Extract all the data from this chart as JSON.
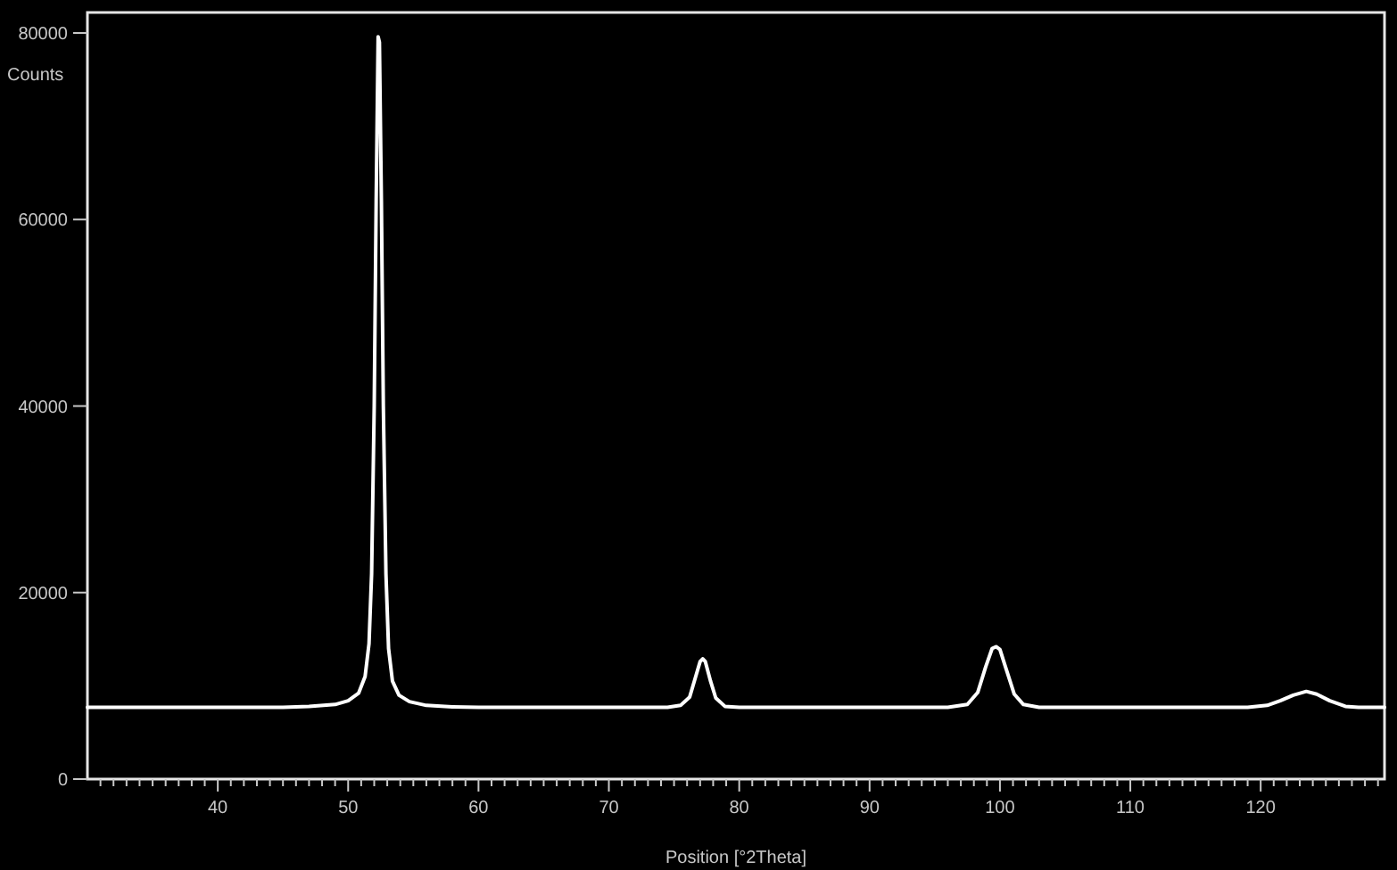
{
  "chart_data": {
    "type": "line",
    "xlabel": "Position [°2Theta]",
    "ylabel": "Counts",
    "xlim": [
      30,
      129.5
    ],
    "ylim": [
      0,
      82200
    ],
    "xticks": [
      {
        "value": 31,
        "label": null
      },
      {
        "value": 32,
        "label": null
      },
      {
        "value": 33,
        "label": null
      },
      {
        "value": 34,
        "label": null
      },
      {
        "value": 35,
        "label": null
      },
      {
        "value": 36,
        "label": null
      },
      {
        "value": 37,
        "label": null
      },
      {
        "value": 38,
        "label": null
      },
      {
        "value": 39,
        "label": null
      },
      40,
      {
        "value": 41,
        "label": null
      },
      {
        "value": 42,
        "label": null
      },
      {
        "value": 43,
        "label": null
      },
      {
        "value": 44,
        "label": null
      },
      {
        "value": 45,
        "label": null
      },
      {
        "value": 46,
        "label": null
      },
      {
        "value": 47,
        "label": null
      },
      {
        "value": 48,
        "label": null
      },
      {
        "value": 49,
        "label": null
      },
      50,
      {
        "value": 51,
        "label": null
      },
      {
        "value": 52,
        "label": null
      },
      {
        "value": 53,
        "label": null
      },
      {
        "value": 54,
        "label": null
      },
      {
        "value": 55,
        "label": null
      },
      {
        "value": 56,
        "label": null
      },
      {
        "value": 57,
        "label": null
      },
      {
        "value": 58,
        "label": null
      },
      {
        "value": 59,
        "label": null
      },
      60,
      {
        "value": 61,
        "label": null
      },
      {
        "value": 62,
        "label": null
      },
      {
        "value": 63,
        "label": null
      },
      {
        "value": 64,
        "label": null
      },
      {
        "value": 65,
        "label": null
      },
      {
        "value": 66,
        "label": null
      },
      {
        "value": 67,
        "label": null
      },
      {
        "value": 68,
        "label": null
      },
      {
        "value": 69,
        "label": null
      },
      70,
      {
        "value": 71,
        "label": null
      },
      {
        "value": 72,
        "label": null
      },
      {
        "value": 73,
        "label": null
      },
      {
        "value": 74,
        "label": null
      },
      {
        "value": 75,
        "label": null
      },
      {
        "value": 76,
        "label": null
      },
      {
        "value": 77,
        "label": null
      },
      {
        "value": 78,
        "label": null
      },
      {
        "value": 79,
        "label": null
      },
      80,
      {
        "value": 81,
        "label": null
      },
      {
        "value": 82,
        "label": null
      },
      {
        "value": 83,
        "label": null
      },
      {
        "value": 84,
        "label": null
      },
      {
        "value": 85,
        "label": null
      },
      {
        "value": 86,
        "label": null
      },
      {
        "value": 87,
        "label": null
      },
      {
        "value": 88,
        "label": null
      },
      {
        "value": 89,
        "label": null
      },
      90,
      {
        "value": 91,
        "label": null
      },
      {
        "value": 92,
        "label": null
      },
      {
        "value": 93,
        "label": null
      },
      {
        "value": 94,
        "label": null
      },
      {
        "value": 95,
        "label": null
      },
      {
        "value": 96,
        "label": null
      },
      {
        "value": 97,
        "label": null
      },
      {
        "value": 98,
        "label": null
      },
      {
        "value": 99,
        "label": null
      },
      100,
      {
        "value": 101,
        "label": null
      },
      {
        "value": 102,
        "label": null
      },
      {
        "value": 103,
        "label": null
      },
      {
        "value": 104,
        "label": null
      },
      {
        "value": 105,
        "label": null
      },
      {
        "value": 106,
        "label": null
      },
      {
        "value": 107,
        "label": null
      },
      {
        "value": 108,
        "label": null
      },
      {
        "value": 109,
        "label": null
      },
      110,
      {
        "value": 111,
        "label": null
      },
      {
        "value": 112,
        "label": null
      },
      {
        "value": 113,
        "label": null
      },
      {
        "value": 114,
        "label": null
      },
      {
        "value": 115,
        "label": null
      },
      {
        "value": 116,
        "label": null
      },
      {
        "value": 117,
        "label": null
      },
      {
        "value": 118,
        "label": null
      },
      {
        "value": 119,
        "label": null
      },
      120,
      {
        "value": 121,
        "label": null
      },
      {
        "value": 122,
        "label": null
      },
      {
        "value": 123,
        "label": null
      },
      {
        "value": 124,
        "label": null
      },
      {
        "value": 125,
        "label": null
      },
      {
        "value": 126,
        "label": null
      },
      {
        "value": 127,
        "label": null
      },
      {
        "value": 128,
        "label": null
      },
      {
        "value": 129,
        "label": null
      }
    ],
    "yticks": [
      0,
      20000,
      40000,
      60000,
      80000
    ],
    "grid": false,
    "marker": "none",
    "line_style": "solid",
    "series": [
      {
        "color": "#ffffff",
        "x": [
          30,
          45,
          47,
          49,
          50,
          50.8,
          51.3,
          51.6,
          51.8,
          52.0,
          52.15,
          52.3,
          52.4,
          52.55,
          52.7,
          52.9,
          53.1,
          53.4,
          53.9,
          54.7,
          56,
          58,
          60,
          74.5,
          75.5,
          76.2,
          76.6,
          77.0,
          77.2,
          77.4,
          77.8,
          78.2,
          78.9,
          80,
          96,
          97.5,
          98.3,
          98.9,
          99.4,
          99.7,
          100.0,
          100.5,
          101.1,
          101.8,
          103,
          119,
          120.5,
          121.5,
          122.5,
          123.5,
          124.3,
          125.3,
          126.5,
          127.5,
          129.5
        ],
        "values": [
          7700,
          7700,
          7800,
          8000,
          8400,
          9200,
          11000,
          14500,
          22000,
          40000,
          62000,
          79600,
          79000,
          62000,
          40000,
          22000,
          14000,
          10500,
          9000,
          8300,
          7900,
          7750,
          7700,
          7700,
          7900,
          8800,
          10700,
          12600,
          12900,
          12600,
          10500,
          8700,
          7800,
          7700,
          7700,
          8000,
          9300,
          12000,
          14000,
          14200,
          13900,
          11700,
          9100,
          8000,
          7700,
          7700,
          7900,
          8400,
          9000,
          9400,
          9100,
          8400,
          7800,
          7700,
          7700
        ]
      }
    ]
  }
}
